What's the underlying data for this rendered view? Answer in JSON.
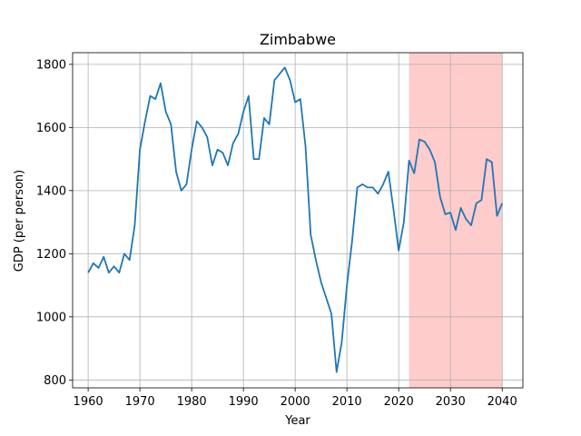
{
  "chart_data": {
    "type": "line",
    "title": "Zimbabwe",
    "xlabel": "Year",
    "ylabel": "GDP (per person)",
    "xlim": [
      1957,
      2044
    ],
    "ylim": [
      775,
      1837
    ],
    "xticks": [
      1960,
      1970,
      1980,
      1990,
      2000,
      2010,
      2020,
      2030,
      2040
    ],
    "yticks": [
      800,
      1000,
      1200,
      1400,
      1600,
      1800
    ],
    "grid": true,
    "shaded_region": {
      "x_start": 2022,
      "x_end": 2040,
      "color": "#ffcccc"
    },
    "series": [
      {
        "color": "#1f77b4",
        "x": [
          1960,
          1961,
          1962,
          1963,
          1964,
          1965,
          1966,
          1967,
          1968,
          1969,
          1970,
          1971,
          1972,
          1973,
          1974,
          1975,
          1976,
          1977,
          1978,
          1979,
          1980,
          1981,
          1982,
          1983,
          1984,
          1985,
          1986,
          1987,
          1988,
          1989,
          1990,
          1991,
          1992,
          1993,
          1994,
          1995,
          1996,
          1997,
          1998,
          1999,
          2000,
          2001,
          2002,
          2003,
          2004,
          2005,
          2006,
          2007,
          2008,
          2009,
          2010,
          2011,
          2012,
          2013,
          2014,
          2015,
          2016,
          2017,
          2018,
          2019,
          2020,
          2021,
          2022,
          2023,
          2024,
          2025,
          2026,
          2027,
          2028,
          2029,
          2030,
          2031,
          2032,
          2033,
          2034,
          2035,
          2036,
          2037,
          2038,
          2039,
          2040
        ],
        "y": [
          1140,
          1170,
          1155,
          1190,
          1140,
          1160,
          1140,
          1200,
          1180,
          1290,
          1530,
          1620,
          1700,
          1690,
          1740,
          1650,
          1610,
          1460,
          1400,
          1420,
          1530,
          1620,
          1600,
          1570,
          1480,
          1530,
          1520,
          1480,
          1550,
          1580,
          1650,
          1700,
          1500,
          1500,
          1630,
          1610,
          1750,
          1770,
          1790,
          1750,
          1680,
          1690,
          1540,
          1260,
          1180,
          1110,
          1060,
          1010,
          825,
          920,
          1100,
          1240,
          1410,
          1420,
          1410,
          1410,
          1390,
          1420,
          1460,
          1340,
          1210,
          1300,
          1495,
          1455,
          1562,
          1555,
          1530,
          1490,
          1380,
          1325,
          1330,
          1275,
          1345,
          1310,
          1290,
          1360,
          1370,
          1500,
          1490,
          1320,
          1360
        ]
      }
    ]
  }
}
